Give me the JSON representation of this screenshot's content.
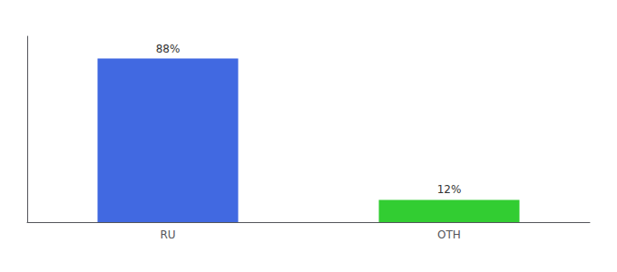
{
  "chart_data": {
    "type": "bar",
    "categories": [
      "RU",
      "OTH"
    ],
    "values": [
      88,
      12
    ],
    "value_labels": [
      "88%",
      "12%"
    ],
    "colors": [
      "#4169E1",
      "#32CD32"
    ],
    "ylim": [
      0,
      100
    ],
    "data_labels": true,
    "tick_labels": "x",
    "grid": false
  }
}
